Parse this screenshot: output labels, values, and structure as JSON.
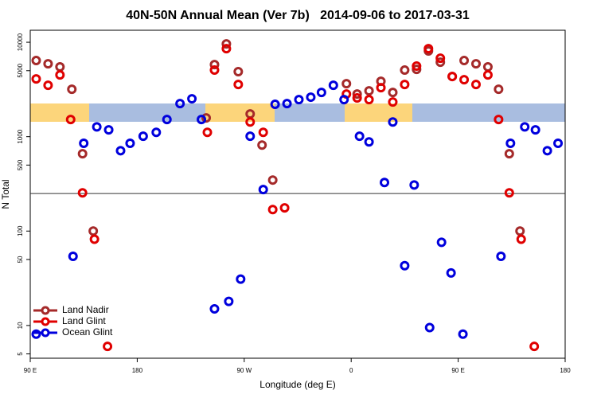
{
  "chart_data": {
    "type": "scatter",
    "title": "40N-50N Annual Mean (Ver 7b)   2014-09-06 to 2017-03-31",
    "x_label": "Longitude (deg E)",
    "y_label": "N Total",
    "xlim": [
      90,
      540
    ],
    "ylim": [
      4.5,
      13400
    ],
    "ylog": true,
    "xticks": [
      {
        "value": 90,
        "label": "90 E"
      },
      180,
      {
        "value": 270,
        "label": "90 W"
      },
      {
        "value": 360,
        "label": "0"
      },
      {
        "value": 450,
        "label": "90 E"
      },
      {
        "value": 540,
        "label": "180"
      }
    ],
    "yticks": [
      5,
      10,
      50,
      100,
      500,
      1000,
      5000,
      10000
    ],
    "hline": 250,
    "legend": "lower left",
    "series": [
      {
        "name": "Land Nadir",
        "color": "#a52a2a",
        "x": [
          95,
          105,
          115,
          125,
          134,
          143,
          238,
          245,
          255,
          265,
          275,
          285,
          294,
          356,
          365,
          375,
          385,
          395,
          405,
          415,
          425,
          435,
          445,
          455,
          465,
          475,
          484,
          493,
          502
        ],
        "values": [
          6400,
          5910,
          5480,
          3180,
          660,
          100,
          1580,
          5800,
          9620,
          4880,
          1740,
          815,
          347,
          3640,
          2830,
          3060,
          3860,
          2940,
          5070,
          5160,
          8080,
          6150,
          4340,
          6400,
          5910,
          5480,
          3180,
          660,
          100
        ]
      },
      {
        "name": "Land Glint",
        "color": "#e00000",
        "x": [
          95,
          105,
          115,
          124,
          134,
          144,
          155,
          239,
          245,
          255,
          265,
          275,
          286,
          294,
          304,
          356,
          365,
          375,
          385,
          395,
          405,
          415,
          425,
          435,
          445,
          455,
          465,
          475,
          484,
          493,
          503,
          514
        ],
        "values": [
          4090,
          3500,
          4510,
          1520,
          254,
          82,
          6,
          1110,
          5070,
          8560,
          3570,
          1430,
          1110,
          169,
          176,
          2830,
          2570,
          2470,
          3300,
          2330,
          3570,
          5590,
          8560,
          6780,
          4340,
          4010,
          3570,
          4510,
          1520,
          254,
          82,
          6
        ]
      },
      {
        "name": "Ocean Glint",
        "color": "#0000dd",
        "x": [
          95,
          126,
          135,
          146,
          156,
          166,
          174,
          185,
          196,
          205,
          216,
          226,
          234,
          245,
          257,
          267,
          275,
          286,
          296,
          306,
          316,
          326,
          335,
          345,
          354,
          367,
          375,
          388,
          395,
          405,
          413,
          426,
          436,
          444,
          454,
          486,
          494,
          506,
          515,
          525,
          534
        ],
        "values": [
          8.1,
          54,
          850,
          1270,
          1180,
          710,
          850,
          1010,
          1110,
          1520,
          2240,
          2520,
          1520,
          15,
          18,
          31,
          1010,
          275,
          2200,
          2240,
          2470,
          2620,
          2940,
          3500,
          2470,
          1010,
          880,
          327,
          1430,
          43,
          308,
          9.5,
          76,
          36,
          8.1,
          54,
          850,
          1270,
          1180,
          710,
          850
        ]
      }
    ]
  }
}
